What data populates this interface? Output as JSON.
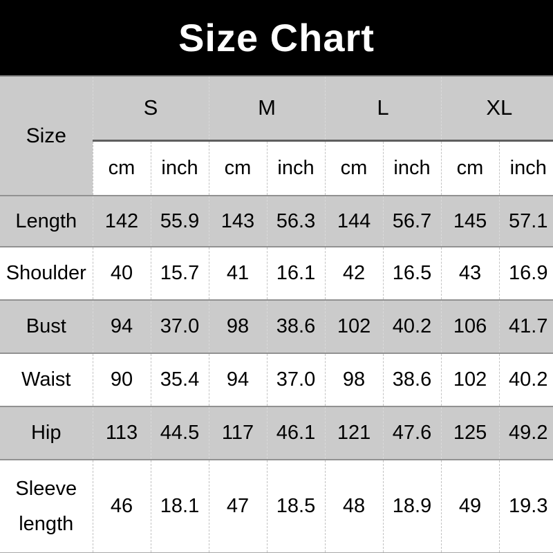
{
  "title": "Size Chart",
  "table": {
    "corner_label": "Size",
    "sizes": [
      "S",
      "M",
      "L",
      "XL"
    ],
    "unit_headers": [
      "cm",
      "inch"
    ],
    "rows": [
      {
        "label": "Length",
        "values": [
          "142",
          "55.9",
          "143",
          "56.3",
          "144",
          "56.7",
          "145",
          "57.1"
        ]
      },
      {
        "label": "Shoulder",
        "values": [
          "40",
          "15.7",
          "41",
          "16.1",
          "42",
          "16.5",
          "43",
          "16.9"
        ]
      },
      {
        "label": "Bust",
        "values": [
          "94",
          "37.0",
          "98",
          "38.6",
          "102",
          "40.2",
          "106",
          "41.7"
        ]
      },
      {
        "label": "Waist",
        "values": [
          "90",
          "35.4",
          "94",
          "37.0",
          "98",
          "38.6",
          "102",
          "40.2"
        ]
      },
      {
        "label": "Hip",
        "values": [
          "113",
          "44.5",
          "117",
          "46.1",
          "121",
          "47.6",
          "125",
          "49.2"
        ]
      },
      {
        "label": "Sleeve length",
        "values": [
          "46",
          "18.1",
          "47",
          "18.5",
          "48",
          "18.9",
          "49",
          "19.3"
        ]
      }
    ]
  },
  "colors": {
    "title_bg": "#000000",
    "title_text": "#ffffff",
    "gray_row": "#cbcbcb",
    "white_row": "#ffffff",
    "row_separator": "#919191",
    "size_header_underline": "#5e5e5e",
    "dashed_divider": "#c2c2c2"
  },
  "chart_data": {
    "type": "table",
    "title": "Size Chart",
    "columns": [
      "Size",
      "S cm",
      "S inch",
      "M cm",
      "M inch",
      "L cm",
      "L inch",
      "XL cm",
      "XL inch"
    ],
    "rows": [
      [
        "Length",
        142,
        55.9,
        143,
        56.3,
        144,
        56.7,
        145,
        57.1
      ],
      [
        "Shoulder",
        40,
        15.7,
        41,
        16.1,
        42,
        16.5,
        43,
        16.9
      ],
      [
        "Bust",
        94,
        37.0,
        98,
        38.6,
        102,
        40.2,
        106,
        41.7
      ],
      [
        "Waist",
        90,
        35.4,
        94,
        37.0,
        98,
        38.6,
        102,
        40.2
      ],
      [
        "Hip",
        113,
        44.5,
        117,
        46.1,
        121,
        47.6,
        125,
        49.2
      ],
      [
        "Sleeve length",
        46,
        18.1,
        47,
        18.5,
        48,
        18.9,
        49,
        19.3
      ]
    ],
    "layout": {
      "header_levels": 2,
      "alternating_row_shading": "gray-white starting gray",
      "units_row": [
        "cm",
        "inch",
        "cm",
        "inch",
        "cm",
        "inch",
        "cm",
        "inch"
      ]
    }
  }
}
